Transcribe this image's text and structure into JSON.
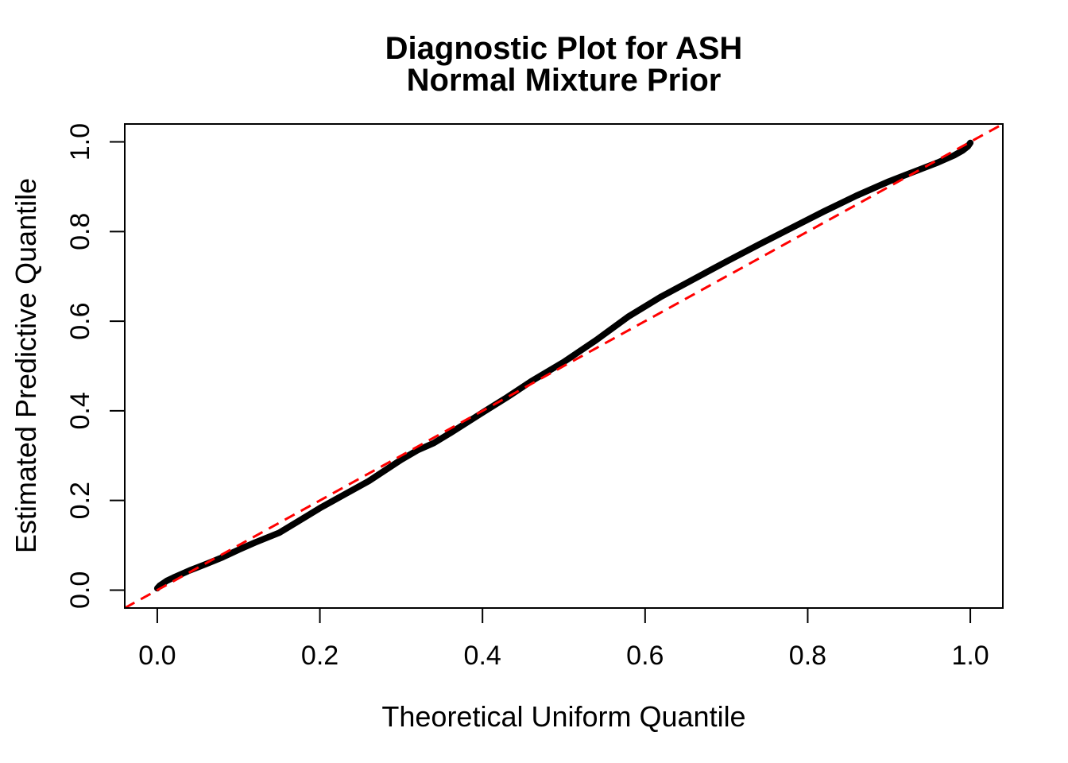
{
  "titles": {
    "line1": "Diagnostic Plot for ASH",
    "line2": "Normal Mixture Prior"
  },
  "colors": {
    "foreground": "#000000",
    "background": "#FFFFFF",
    "reference_line": "#FF0000"
  },
  "chart_data": {
    "type": "scatter",
    "title": "Diagnostic Plot for ASH\nNormal Mixture Prior",
    "xlabel": "Theoretical Uniform Quantile",
    "ylabel": "Estimated Predictive Quantile",
    "xlim": [
      -0.04,
      1.04
    ],
    "ylim": [
      -0.04,
      1.04
    ],
    "grid": false,
    "legend": "none",
    "x_ticks": {
      "values": [
        0.0,
        0.2,
        0.4,
        0.6,
        0.8,
        1.0
      ],
      "labels": [
        "0.0",
        "0.2",
        "0.4",
        "0.6",
        "0.8",
        "1.0"
      ]
    },
    "y_ticks": {
      "values": [
        0.0,
        0.2,
        0.4,
        0.6,
        0.8,
        1.0
      ],
      "labels": [
        "0.0",
        "0.2",
        "0.4",
        "0.6",
        "0.8",
        "1.0"
      ]
    },
    "series": [
      {
        "name": "estimated-predictive-quantiles",
        "type": "points",
        "marker": "filled-circle",
        "color": "#000000",
        "points": [
          [
            0.0,
            0.004
          ],
          [
            0.003,
            0.01
          ],
          [
            0.007,
            0.015
          ],
          [
            0.012,
            0.021
          ],
          [
            0.02,
            0.028
          ],
          [
            0.04,
            0.044
          ],
          [
            0.06,
            0.058
          ],
          [
            0.08,
            0.073
          ],
          [
            0.1,
            0.09
          ],
          [
            0.12,
            0.106
          ],
          [
            0.15,
            0.128
          ],
          [
            0.17,
            0.15
          ],
          [
            0.2,
            0.183
          ],
          [
            0.23,
            0.213
          ],
          [
            0.26,
            0.243
          ],
          [
            0.3,
            0.291
          ],
          [
            0.32,
            0.312
          ],
          [
            0.34,
            0.328
          ],
          [
            0.36,
            0.35
          ],
          [
            0.4,
            0.396
          ],
          [
            0.43,
            0.43
          ],
          [
            0.46,
            0.466
          ],
          [
            0.5,
            0.509
          ],
          [
            0.54,
            0.558
          ],
          [
            0.58,
            0.611
          ],
          [
            0.62,
            0.655
          ],
          [
            0.66,
            0.694
          ],
          [
            0.7,
            0.733
          ],
          [
            0.74,
            0.771
          ],
          [
            0.78,
            0.808
          ],
          [
            0.82,
            0.845
          ],
          [
            0.86,
            0.88
          ],
          [
            0.9,
            0.912
          ],
          [
            0.93,
            0.933
          ],
          [
            0.96,
            0.954
          ],
          [
            0.98,
            0.97
          ],
          [
            0.99,
            0.98
          ],
          [
            0.997,
            0.99
          ],
          [
            1.0,
            0.998
          ]
        ]
      },
      {
        "name": "identity-reference-line",
        "type": "line",
        "style": "dashed",
        "color": "#FF0000",
        "points": [
          [
            -0.04,
            -0.04
          ],
          [
            1.04,
            1.04
          ]
        ]
      }
    ]
  }
}
